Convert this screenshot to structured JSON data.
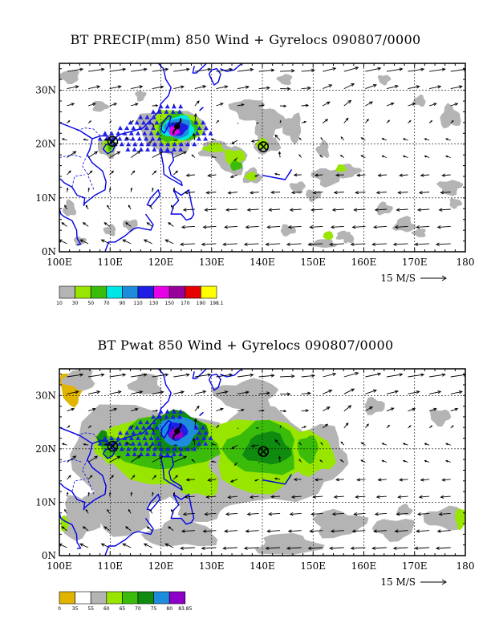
{
  "panels": [
    {
      "title": "BT PRECIP(mm) 850 Wind + Gyrelocs 090807/0000",
      "lat_labels": [
        "0N",
        "10N",
        "20N",
        "30N"
      ],
      "lon_labels": [
        "100E",
        "110E",
        "120E",
        "130E",
        "140E",
        "150E",
        "160E",
        "170E",
        "180"
      ],
      "ref_vector": "15 M/S",
      "colorbar": {
        "colors": [
          "#b4b4b4",
          "#98e600",
          "#3cbc0a",
          "#00e6e6",
          "#1e8cdc",
          "#1e1ee6",
          "#e600e6",
          "#96009b",
          "#e60000",
          "#ffff00"
        ],
        "labels": [
          "10",
          "30",
          "50",
          "70",
          "90",
          "110",
          "130",
          "150",
          "170",
          "190",
          "198.1"
        ]
      },
      "gyre_centers": [
        {
          "lon": 110.5,
          "lat": 20.5
        },
        {
          "lon": 140.2,
          "lat": 19.5
        }
      ],
      "typhoon_symbol": {
        "lon": 123.2,
        "lat": 23.3
      }
    },
    {
      "title": "BT Pwat 850 Wind + Gyrelocs 090807/0000",
      "lat_labels": [
        "0N",
        "10N",
        "20N",
        "30N"
      ],
      "lon_labels": [
        "100E",
        "110E",
        "120E",
        "130E",
        "140E",
        "150E",
        "160E",
        "170E",
        "180"
      ],
      "ref_vector": "15 M/S",
      "colorbar": {
        "colors": [
          "#e1b400",
          "#ffffff",
          "#b4b4b4",
          "#98e600",
          "#3cbc0a",
          "#0f8c0f",
          "#1e8cdc",
          "#8c00c8"
        ],
        "labels": [
          "0",
          "35",
          "55",
          "60",
          "65",
          "70",
          "75",
          "80",
          "83.85"
        ]
      },
      "gyre_centers": [
        {
          "lon": 110.5,
          "lat": 20.5
        },
        {
          "lon": 140.2,
          "lat": 19.5
        }
      ],
      "typhoon_symbol": {
        "lon": 123.2,
        "lat": 23.3
      }
    }
  ]
}
